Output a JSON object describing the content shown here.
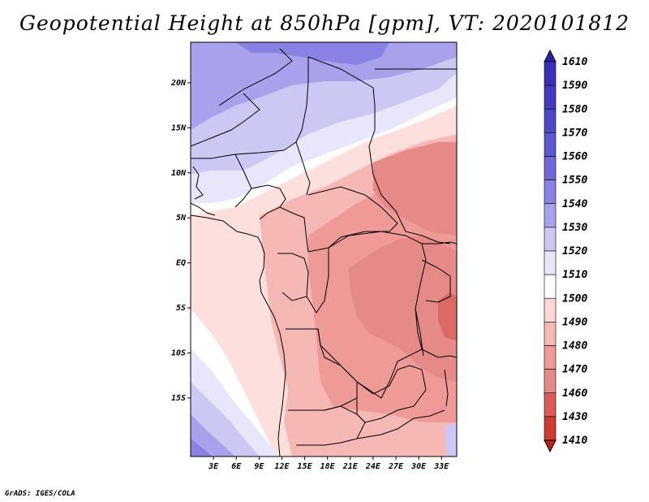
{
  "title": "Geopotential Height at 850hPa [gpm], VT: 2020101812",
  "footer": "GrADS: IGES/COLA",
  "map": {
    "lon_range": [
      0,
      35
    ],
    "lat_range": [
      -21.5,
      24.5
    ],
    "lat_ticks": [
      {
        "value": 20,
        "label": "20N"
      },
      {
        "value": 15,
        "label": "15N"
      },
      {
        "value": 10,
        "label": "10N"
      },
      {
        "value": 5,
        "label": "5N"
      },
      {
        "value": 0,
        "label": "EQ"
      },
      {
        "value": -5,
        "label": "5S"
      },
      {
        "value": -10,
        "label": "10S"
      },
      {
        "value": -15,
        "label": "15S"
      }
    ],
    "lon_ticks": [
      {
        "value": 3,
        "label": "3E"
      },
      {
        "value": 6,
        "label": "6E"
      },
      {
        "value": 9,
        "label": "9E"
      },
      {
        "value": 12,
        "label": "12E"
      },
      {
        "value": 15,
        "label": "15E"
      },
      {
        "value": 18,
        "label": "18E"
      },
      {
        "value": 21,
        "label": "21E"
      },
      {
        "value": 24,
        "label": "24E"
      },
      {
        "value": 27,
        "label": "27E"
      },
      {
        "value": 30,
        "label": "30E"
      },
      {
        "value": 33,
        "label": "33E"
      }
    ]
  },
  "colorbar": {
    "levels": [
      {
        "label": "1610",
        "color": "#3020a8"
      },
      {
        "label": "1590",
        "color": "#3a2fb8"
      },
      {
        "label": "1580",
        "color": "#4439c0"
      },
      {
        "label": "1570",
        "color": "#5047c8"
      },
      {
        "label": "1560",
        "color": "#5e58d0"
      },
      {
        "label": "1550",
        "color": "#7068d8"
      },
      {
        "label": "1540",
        "color": "#8a82e2"
      },
      {
        "label": "1530",
        "color": "#a8a2ec"
      },
      {
        "label": "1520",
        "color": "#ccc8f4"
      },
      {
        "label": "1510",
        "color": "#e8e6fa"
      },
      {
        "label": "1500",
        "color": "#ffffff"
      },
      {
        "label": "1490",
        "color": "#fbd8d6"
      },
      {
        "label": "1480",
        "color": "#f6b8b4"
      },
      {
        "label": "1470",
        "color": "#ee9a96"
      },
      {
        "label": "1460",
        "color": "#e58a86"
      },
      {
        "label": "1430",
        "color": "#dc5c56"
      },
      {
        "label": "1410",
        "color": "#cc3a30"
      },
      {
        "label": "",
        "color": "#b82418"
      }
    ]
  },
  "field_colors": {
    "blue_dark": "#8a82e2",
    "blue_mid": "#a8a2ec",
    "blue_light": "#ccc8f4",
    "blue_pale": "#e8e6fa",
    "white": "#ffffff",
    "red_pale": "#fde0de",
    "red_light": "#f6b8b4",
    "red_mid": "#ee9a96",
    "red_strong": "#e58a86",
    "red_dark": "#dc6a64"
  }
}
